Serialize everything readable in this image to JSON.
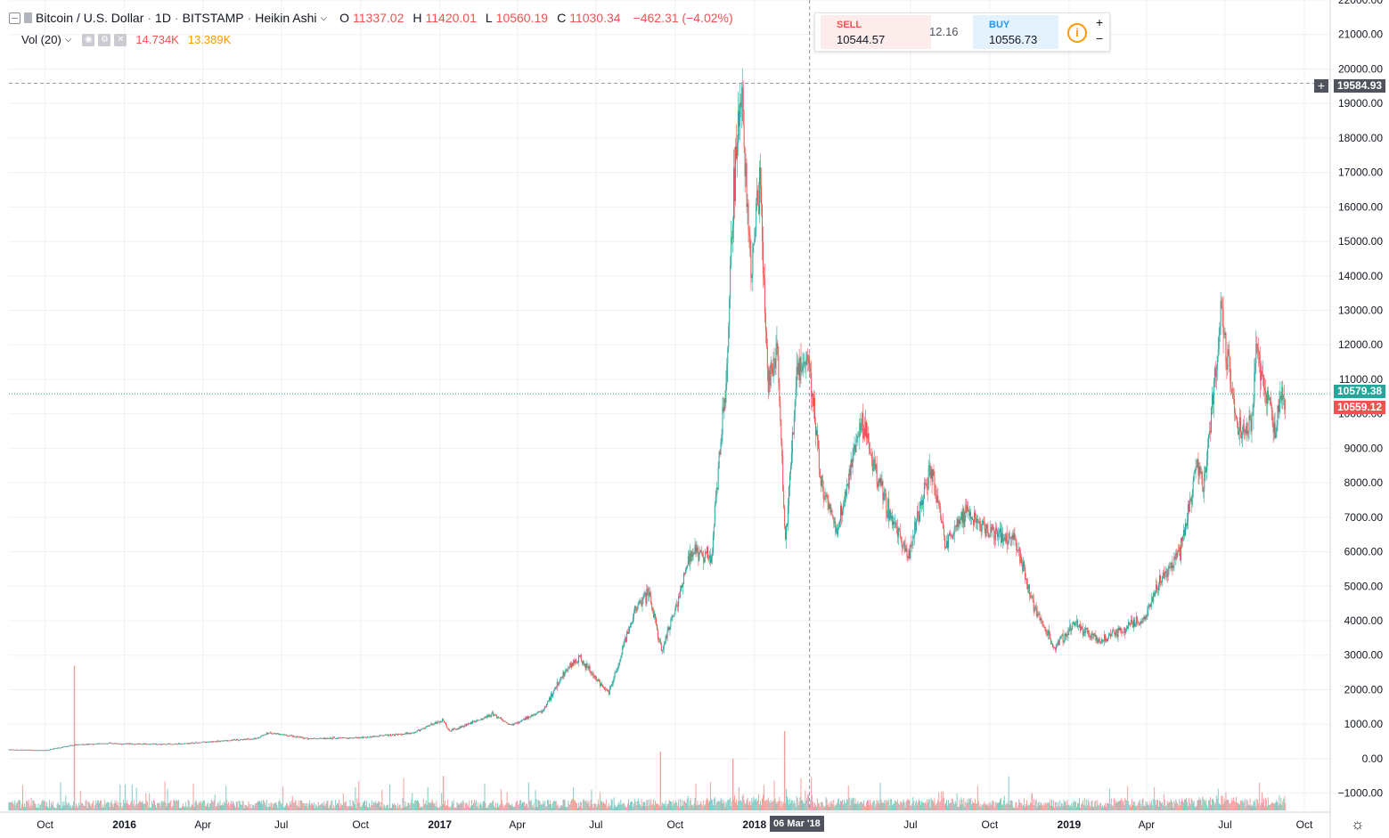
{
  "header": {
    "symbol": "Bitcoin / U.S. Dollar",
    "interval": "1D",
    "exchange": "BITSTAMP",
    "style": "Heikin Ashi",
    "o_label": "O",
    "o_val": "11337.02",
    "h_label": "H",
    "h_val": "11420.01",
    "l_label": "L",
    "l_val": "10560.19",
    "c_label": "C",
    "c_val": "11030.34",
    "change": "−462.31 (−4.02%)",
    "vol_label": "Vol (20)",
    "vol_val1": "14.734K",
    "vol_val2": "13.389K"
  },
  "trade_panel": {
    "sell_label": "SELL",
    "sell_price": "10544.57",
    "spread": "12.16",
    "buy_label": "BUY",
    "buy_price": "10556.73",
    "plus": "+",
    "minus": "−"
  },
  "tags": {
    "crosshair_price": "19584.93",
    "last_price": "10579.38",
    "close_price": "10559.12",
    "crosshair_date": "06 Mar '18"
  },
  "colors": {
    "up": "#26a69a",
    "down": "#ef5350",
    "vol_up": "#80cbc4",
    "vol_down": "#f4a09d",
    "grid": "#eef0f3"
  },
  "chart_data": {
    "type": "candlestick",
    "title": "Bitcoin / U.S. Dollar · 1D · BITSTAMP · Heikin Ashi",
    "ylim": [
      -1500,
      22000
    ],
    "y_ticks": [
      22000,
      21000,
      20000,
      19000,
      18000,
      17000,
      16000,
      15000,
      14000,
      13000,
      12000,
      11000,
      10000,
      9000,
      8000,
      7000,
      6000,
      5000,
      4000,
      3000,
      2000,
      1000,
      0,
      -1000
    ],
    "y_tick_labels": [
      "22000.00",
      "21000.00",
      "20000.00",
      "19000.00",
      "18000.00",
      "17000.00",
      "16000.00",
      "15000.00",
      "14000.00",
      "13000.00",
      "12000.00",
      "11000.00",
      "10000.00",
      "9000.00",
      "8000.00",
      "7000.00",
      "6000.00",
      "5000.00",
      "4000.00",
      "3000.00",
      "2000.00",
      "1000.00",
      "0.00",
      "−1000.00"
    ],
    "x_start": "2015-08-20",
    "x_end": "2019-10-31",
    "x_ticks": [
      {
        "date": "2015-10-01",
        "label": "Oct"
      },
      {
        "date": "2016-01-01",
        "label": "2016"
      },
      {
        "date": "2016-04-01",
        "label": "Apr"
      },
      {
        "date": "2016-07-01",
        "label": "Jul"
      },
      {
        "date": "2016-10-01",
        "label": "Oct"
      },
      {
        "date": "2017-01-01",
        "label": "2017"
      },
      {
        "date": "2017-04-01",
        "label": "Apr"
      },
      {
        "date": "2017-07-01",
        "label": "Jul"
      },
      {
        "date": "2017-10-01",
        "label": "Oct"
      },
      {
        "date": "2018-01-01",
        "label": "2018"
      },
      {
        "date": "2018-07-01",
        "label": "Jul"
      },
      {
        "date": "2018-10-01",
        "label": "Oct"
      },
      {
        "date": "2019-01-01",
        "label": "2019"
      },
      {
        "date": "2019-04-01",
        "label": "Apr"
      },
      {
        "date": "2019-07-01",
        "label": "Jul"
      },
      {
        "date": "2019-10-01",
        "label": "Oct"
      }
    ],
    "crosshair": {
      "date": "2018-03-06",
      "price": 19584.93
    },
    "last_price": 10579.38,
    "close_price": 10559.12,
    "price_path": [
      [
        "2015-08-20",
        260
      ],
      [
        "2015-10-01",
        240
      ],
      [
        "2015-11-04",
        400
      ],
      [
        "2015-12-15",
        450
      ],
      [
        "2016-01-01",
        430
      ],
      [
        "2016-03-01",
        420
      ],
      [
        "2016-06-01",
        580
      ],
      [
        "2016-06-17",
        760
      ],
      [
        "2016-08-01",
        580
      ],
      [
        "2016-10-01",
        610
      ],
      [
        "2016-12-01",
        750
      ],
      [
        "2017-01-04",
        1120
      ],
      [
        "2017-01-12",
        800
      ],
      [
        "2017-03-03",
        1280
      ],
      [
        "2017-03-25",
        960
      ],
      [
        "2017-05-01",
        1400
      ],
      [
        "2017-05-25",
        2500
      ],
      [
        "2017-06-11",
        2950
      ],
      [
        "2017-07-16",
        1900
      ],
      [
        "2017-08-15",
        4300
      ],
      [
        "2017-09-01",
        4800
      ],
      [
        "2017-09-15",
        3100
      ],
      [
        "2017-10-01",
        4300
      ],
      [
        "2017-10-20",
        6000
      ],
      [
        "2017-11-12",
        5900
      ],
      [
        "2017-11-29",
        11000
      ],
      [
        "2017-12-08",
        16500
      ],
      [
        "2017-12-17",
        19500
      ],
      [
        "2017-12-28",
        14000
      ],
      [
        "2018-01-07",
        16800
      ],
      [
        "2018-01-17",
        11000
      ],
      [
        "2018-01-28",
        11800
      ],
      [
        "2018-02-06",
        6200
      ],
      [
        "2018-02-20",
        11400
      ],
      [
        "2018-03-06",
        11500
      ],
      [
        "2018-03-18",
        8200
      ],
      [
        "2018-04-06",
        6600
      ],
      [
        "2018-05-05",
        9800
      ],
      [
        "2018-06-01",
        7500
      ],
      [
        "2018-06-28",
        5900
      ],
      [
        "2018-07-25",
        8400
      ],
      [
        "2018-08-10",
        6200
      ],
      [
        "2018-09-05",
        7200
      ],
      [
        "2018-09-30",
        6600
      ],
      [
        "2018-10-31",
        6350
      ],
      [
        "2018-11-20",
        4500
      ],
      [
        "2018-12-15",
        3200
      ],
      [
        "2019-01-05",
        3900
      ],
      [
        "2019-02-07",
        3400
      ],
      [
        "2019-03-31",
        4100
      ],
      [
        "2019-04-15",
        5100
      ],
      [
        "2019-05-10",
        6000
      ],
      [
        "2019-05-30",
        8500
      ],
      [
        "2019-06-06",
        7700
      ],
      [
        "2019-06-26",
        13000
      ],
      [
        "2019-07-16",
        9500
      ],
      [
        "2019-07-31",
        9600
      ],
      [
        "2019-08-06",
        11800
      ],
      [
        "2019-08-28",
        9600
      ],
      [
        "2019-09-05",
        10600
      ],
      [
        "2019-09-09",
        10600
      ]
    ],
    "volume_spikes": [
      {
        "date": "2015-11-04",
        "value": 4200
      },
      {
        "date": "2017-01-05",
        "value": 1000
      },
      {
        "date": "2017-09-14",
        "value": 1700
      },
      {
        "date": "2017-12-07",
        "value": 1500
      },
      {
        "date": "2018-02-05",
        "value": 2300
      },
      {
        "date": "2018-11-19",
        "value": 500
      },
      {
        "date": "2019-06-27",
        "value": 400
      }
    ]
  }
}
